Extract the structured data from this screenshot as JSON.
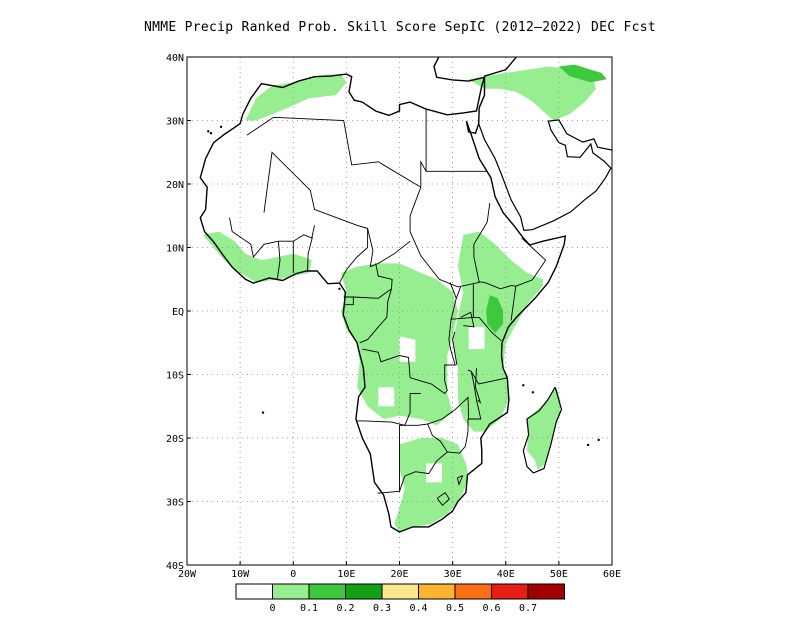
{
  "title": "NMME Precip Ranked Prob. Skill Score SepIC (2012–2022) DEC Fcst",
  "map": {
    "region": "Africa",
    "lon_range": [
      -20,
      60
    ],
    "lat_range": [
      -40,
      40
    ],
    "lon_ticks": [
      "20W",
      "10W",
      "0",
      "10E",
      "20E",
      "30E",
      "40E",
      "50E",
      "60E"
    ],
    "lat_ticks": [
      "40N",
      "30N",
      "20N",
      "10N",
      "EQ",
      "10S",
      "20S",
      "30S",
      "40S"
    ],
    "gridlines": "dotted",
    "skill_regions": [
      {
        "name": "Sahel west coast",
        "bin": 1
      },
      {
        "name": "Central Africa / Congo",
        "bin": 1
      },
      {
        "name": "East Africa",
        "bin": 1
      },
      {
        "name": "Kenya core",
        "bin": 2
      },
      {
        "name": "Southern Africa",
        "bin": 1
      },
      {
        "name": "Madagascar",
        "bin": 1
      },
      {
        "name": "North Africa coast",
        "bin": 1
      },
      {
        "name": "Middle East",
        "bin": 1
      },
      {
        "name": "Caspian",
        "bin": 2
      }
    ]
  },
  "legend": {
    "colors": [
      "#ffffff",
      "#96ee90",
      "#3cca3c",
      "#14a014",
      "#fae68c",
      "#fab432",
      "#fa6e14",
      "#e61e14",
      "#a00000"
    ],
    "labels": [
      "0",
      "0.1",
      "0.2",
      "0.3",
      "0.4",
      "0.5",
      "0.6",
      "0.7"
    ]
  }
}
